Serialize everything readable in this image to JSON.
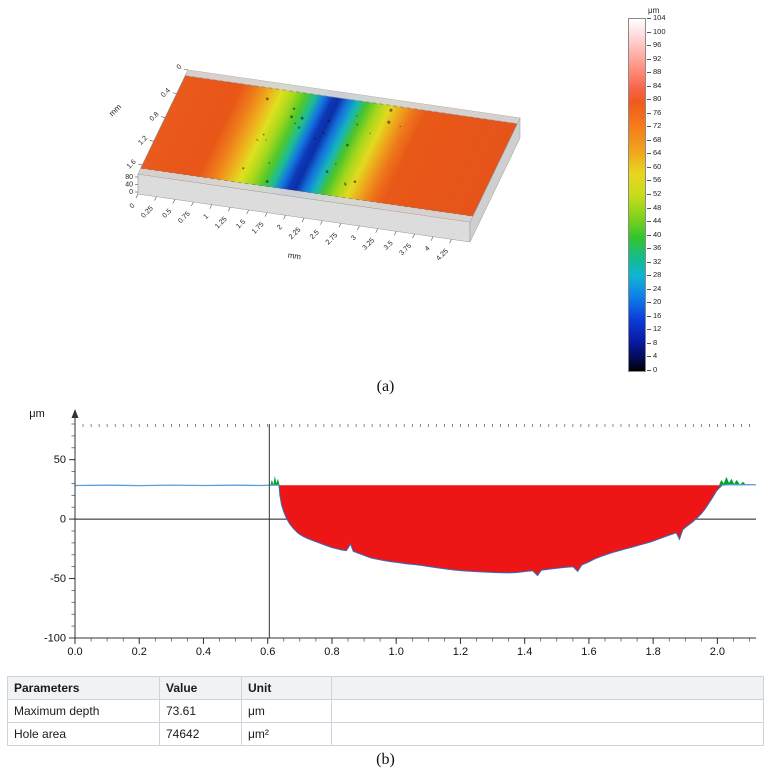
{
  "figure": {
    "panel_a_label": "(a)",
    "panel_b_label": "(b)"
  },
  "colors": {
    "surface_base": "#e65a1a",
    "profile_fill": "#ed1515",
    "profile_stroke": "#2f6fbe",
    "baseline_stroke": "#5aa0dc",
    "spike_green": "#00a332",
    "colorbar_stops": [
      [
        0,
        "#ffffff"
      ],
      [
        0.05,
        "#ffd8d8"
      ],
      [
        0.1,
        "#ffb0a8"
      ],
      [
        0.155,
        "#ff8570"
      ],
      [
        0.2,
        "#f86248"
      ],
      [
        0.235,
        "#ef5a1e"
      ],
      [
        0.3,
        "#f4791a"
      ],
      [
        0.37,
        "#f0a11c"
      ],
      [
        0.44,
        "#e8d61e"
      ],
      [
        0.5,
        "#c8dc1c"
      ],
      [
        0.56,
        "#84d41a"
      ],
      [
        0.62,
        "#34c42c"
      ],
      [
        0.68,
        "#12bc8c"
      ],
      [
        0.73,
        "#10b4d4"
      ],
      [
        0.79,
        "#0e7ee8"
      ],
      [
        0.855,
        "#0c3cd8"
      ],
      [
        0.92,
        "#0818a0"
      ],
      [
        0.965,
        "#040b50"
      ],
      [
        1,
        "#000000"
      ]
    ],
    "surface_stops": [
      [
        0,
        "#ea5a1c"
      ],
      [
        0.17,
        "#e85618"
      ],
      [
        0.22,
        "#ef7f1b"
      ],
      [
        0.26,
        "#eeb01d"
      ],
      [
        0.295,
        "#dfe01f"
      ],
      [
        0.33,
        "#a8d81c"
      ],
      [
        0.365,
        "#52c828"
      ],
      [
        0.395,
        "#1cbc96"
      ],
      [
        0.42,
        "#1478e0"
      ],
      [
        0.445,
        "#0c38b8"
      ],
      [
        0.465,
        "#0c2fa8"
      ],
      [
        0.49,
        "#1470dc"
      ],
      [
        0.52,
        "#14b4c0"
      ],
      [
        0.55,
        "#48c42c"
      ],
      [
        0.585,
        "#a6d61c"
      ],
      [
        0.62,
        "#e2da1e"
      ],
      [
        0.655,
        "#eea41c"
      ],
      [
        0.69,
        "#ee751a"
      ],
      [
        0.73,
        "#e85818"
      ],
      [
        1,
        "#e65419"
      ]
    ]
  },
  "chart_data": [
    {
      "type": "heatmap",
      "name": "surface-topography-3d",
      "x_label": "mm",
      "y_label": "mm",
      "z_unit": "μm",
      "x_ticks": [
        "0",
        "0.25",
        "0.5",
        "0.75",
        "1",
        "1.25",
        "1.5",
        "1.75",
        "2",
        "2.25",
        "2.5",
        "2.75",
        "3",
        "3.25",
        "3.5",
        "3.75",
        "4",
        "4.25"
      ],
      "y_ticks": [
        "0",
        "0.4",
        "0.8",
        "1.2",
        "1.6"
      ],
      "z_ticks": [
        "80",
        "40",
        "0"
      ],
      "x_range_mm": [
        0,
        4.5
      ],
      "y_range_mm": [
        0,
        1.75
      ],
      "colorbar": {
        "label": "μm",
        "min": 0,
        "max": 104,
        "tick_step": 4,
        "ticks": [
          104,
          100,
          96,
          92,
          88,
          84,
          80,
          76,
          72,
          68,
          64,
          60,
          56,
          52,
          48,
          44,
          40,
          36,
          32,
          28,
          24,
          20,
          16,
          12,
          8,
          4,
          0
        ]
      }
    },
    {
      "type": "area",
      "name": "depth-profile",
      "y_label": "μm",
      "x_ticks": [
        "0.0",
        "0.2",
        "0.4",
        "0.6",
        "0.8",
        "1.0",
        "1.2",
        "1.4",
        "1.6",
        "1.8",
        "2.0"
      ],
      "y_ticks": [
        50,
        0,
        -50,
        -100
      ],
      "xlim": [
        0,
        2.12
      ],
      "ylim": [
        -100,
        80
      ],
      "x_minor_step": 0.05,
      "y_minor_step": 10,
      "cursor_x": 0.605,
      "baseline_level": 28.5,
      "baseline_left": [
        [
          0,
          28.3
        ],
        [
          0.1,
          28.5
        ],
        [
          0.2,
          28.2
        ],
        [
          0.3,
          28.6
        ],
        [
          0.4,
          28.3
        ],
        [
          0.5,
          28.5
        ],
        [
          0.58,
          28.3
        ],
        [
          0.61,
          28.6
        ],
        [
          0.635,
          28.5
        ]
      ],
      "baseline_right": [
        [
          2.015,
          28.5
        ],
        [
          2.04,
          29
        ],
        [
          2.07,
          28.8
        ],
        [
          2.1,
          29
        ],
        [
          2.12,
          28.9
        ]
      ],
      "profile": [
        [
          0.635,
          28.5
        ],
        [
          0.638,
          20
        ],
        [
          0.643,
          12
        ],
        [
          0.65,
          6
        ],
        [
          0.658,
          1
        ],
        [
          0.668,
          -4
        ],
        [
          0.68,
          -8
        ],
        [
          0.695,
          -12
        ],
        [
          0.71,
          -14.5
        ],
        [
          0.725,
          -16.5
        ],
        [
          0.74,
          -18
        ],
        [
          0.755,
          -19.5
        ],
        [
          0.77,
          -21
        ],
        [
          0.785,
          -22.5
        ],
        [
          0.8,
          -24
        ],
        [
          0.815,
          -25
        ],
        [
          0.83,
          -26
        ],
        [
          0.845,
          -26.5
        ],
        [
          0.858,
          -21
        ],
        [
          0.866,
          -27
        ],
        [
          0.88,
          -28.5
        ],
        [
          0.895,
          -30
        ],
        [
          0.91,
          -31.5
        ],
        [
          0.925,
          -33
        ],
        [
          0.945,
          -34
        ],
        [
          0.965,
          -35
        ],
        [
          0.985,
          -35.8
        ],
        [
          1.005,
          -36.5
        ],
        [
          1.03,
          -37.5
        ],
        [
          1.055,
          -38.2
        ],
        [
          1.08,
          -39
        ],
        [
          1.105,
          -40
        ],
        [
          1.13,
          -41
        ],
        [
          1.155,
          -42
        ],
        [
          1.18,
          -42.8
        ],
        [
          1.205,
          -43.4
        ],
        [
          1.23,
          -43.8
        ],
        [
          1.255,
          -44.2
        ],
        [
          1.28,
          -44.6
        ],
        [
          1.305,
          -44.9
        ],
        [
          1.33,
          -45.1
        ],
        [
          1.355,
          -45.2
        ],
        [
          1.38,
          -44.8
        ],
        [
          1.405,
          -44
        ],
        [
          1.425,
          -43.5
        ],
        [
          1.44,
          -47.5
        ],
        [
          1.452,
          -43
        ],
        [
          1.475,
          -42.2
        ],
        [
          1.5,
          -41.4
        ],
        [
          1.525,
          -40.6
        ],
        [
          1.55,
          -40
        ],
        [
          1.565,
          -44
        ],
        [
          1.578,
          -38.5
        ],
        [
          1.6,
          -36
        ],
        [
          1.618,
          -33.5
        ],
        [
          1.636,
          -31.5
        ],
        [
          1.655,
          -29.8
        ],
        [
          1.675,
          -28
        ],
        [
          1.695,
          -26.5
        ],
        [
          1.715,
          -25
        ],
        [
          1.735,
          -23.5
        ],
        [
          1.755,
          -22
        ],
        [
          1.775,
          -20.5
        ],
        [
          1.795,
          -19
        ],
        [
          1.815,
          -17
        ],
        [
          1.835,
          -15
        ],
        [
          1.855,
          -13
        ],
        [
          1.872,
          -11.5
        ],
        [
          1.882,
          -17
        ],
        [
          1.892,
          -9
        ],
        [
          1.905,
          -6
        ],
        [
          1.92,
          -3
        ],
        [
          1.935,
          0.5
        ],
        [
          1.95,
          4.5
        ],
        [
          1.963,
          9
        ],
        [
          1.975,
          14
        ],
        [
          1.987,
          19
        ],
        [
          1.997,
          23.5
        ],
        [
          2.007,
          26.5
        ],
        [
          2.015,
          28.5
        ]
      ],
      "green_spikes": [
        [
          [
            0.608,
            28.5
          ],
          [
            0.613,
            33
          ],
          [
            0.618,
            29
          ],
          [
            0.622,
            36.5
          ],
          [
            0.627,
            30
          ],
          [
            0.632,
            34
          ],
          [
            0.637,
            28.5
          ]
        ],
        [
          [
            2.005,
            28.5
          ],
          [
            2.012,
            33
          ],
          [
            2.02,
            30
          ],
          [
            2.028,
            35.5
          ],
          [
            2.036,
            30.5
          ],
          [
            2.044,
            34
          ],
          [
            2.052,
            29.5
          ],
          [
            2.06,
            33
          ],
          [
            2.07,
            29
          ],
          [
            2.08,
            31.5
          ],
          [
            2.09,
            28.5
          ]
        ]
      ]
    }
  ],
  "table": {
    "headers": [
      "Parameters",
      "Value",
      "Unit"
    ],
    "rows": [
      [
        "Maximum depth",
        "73.61",
        "μm"
      ],
      [
        "Hole area",
        "74642",
        "μm²"
      ]
    ]
  }
}
